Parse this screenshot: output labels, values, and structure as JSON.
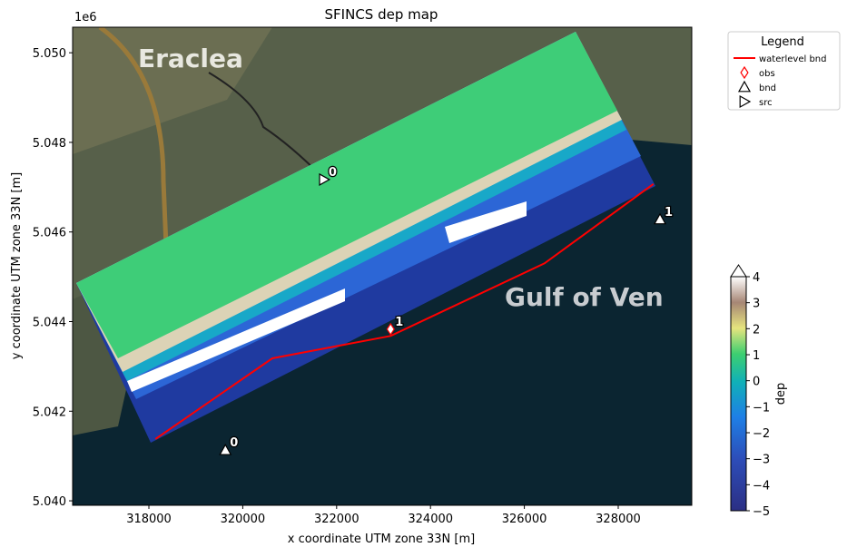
{
  "chart_data": {
    "type": "map",
    "title": "SFINCS dep map",
    "xlabel": "x coordinate UTM zone 33N [m]",
    "ylabel": "y coordinate UTM zone 33N [m]",
    "yoffset": "1e6",
    "xlim": [
      316375,
      329567
    ],
    "ylim": [
      5039900,
      5050570
    ],
    "xticks": [
      318000,
      320000,
      322000,
      324000,
      326000,
      328000
    ],
    "yticks": [
      {
        "value": 5040000,
        "label": "5.040"
      },
      {
        "value": 5042000,
        "label": "5.042"
      },
      {
        "value": 5044000,
        "label": "5.044"
      },
      {
        "value": 5046000,
        "label": "5.046"
      },
      {
        "value": 5048000,
        "label": "5.048"
      },
      {
        "value": 5050000,
        "label": "5.050"
      }
    ],
    "basemap_labels": [
      "Eraclea",
      "Gulf of Ven"
    ],
    "legend_title": "Legend",
    "series": [
      {
        "name": "waterlevel bnd",
        "color": "#ff0000",
        "marker": "line",
        "x": [
          318140,
          320630,
          323150,
          326430,
          328750
        ],
        "y": [
          5041380,
          5043180,
          5043680,
          5045300,
          5047070
        ]
      },
      {
        "name": "obs",
        "color": "#ff0000",
        "marker": "diamond",
        "x": [
          323150
        ],
        "y": [
          5043830
        ],
        "labels": [
          "1"
        ]
      },
      {
        "name": "bnd",
        "color": "#000000",
        "marker": "triangle",
        "x": [
          319630,
          328890
        ],
        "y": [
          5041130,
          5046280
        ],
        "labels": [
          "0",
          "1"
        ]
      },
      {
        "name": "src",
        "color": "#000000",
        "marker": "triangle-right",
        "x": [
          321730
        ],
        "y": [
          5047170
        ],
        "labels": [
          "0"
        ]
      }
    ],
    "colorbar": {
      "label": "dep",
      "lim": [
        -5,
        4
      ],
      "ticks": [
        {
          "value": -5,
          "label": "−5"
        },
        {
          "value": -4,
          "label": "−4"
        },
        {
          "value": -3,
          "label": "−3"
        },
        {
          "value": -2,
          "label": "−2"
        },
        {
          "value": -1,
          "label": "−1"
        },
        0,
        1,
        2,
        3,
        4
      ]
    }
  }
}
